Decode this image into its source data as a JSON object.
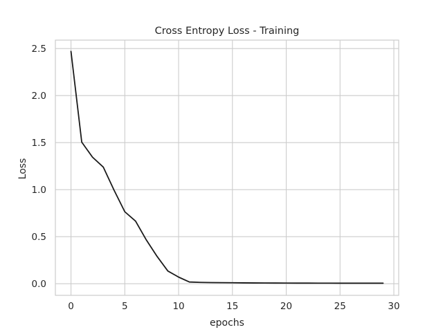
{
  "chart_data": {
    "type": "line",
    "title": "Cross Entropy Loss - Training",
    "xlabel": "epochs",
    "ylabel": "Loss",
    "xlim": [
      -1.45,
      30.45
    ],
    "ylim": [
      -0.124,
      2.59
    ],
    "xticks": [
      0,
      5,
      10,
      15,
      20,
      25,
      30
    ],
    "yticks": [
      0.0,
      0.5,
      1.0,
      1.5,
      2.0,
      2.5
    ],
    "xtick_labels": [
      "0",
      "5",
      "10",
      "15",
      "20",
      "25",
      "30"
    ],
    "ytick_labels": [
      "0.0",
      "0.5",
      "1.0",
      "1.5",
      "2.0",
      "2.5"
    ],
    "grid": true,
    "legend": false,
    "colors": {
      "line": "#1a1a1a",
      "grid": "#cccccc",
      "background": "#ffffff"
    },
    "series": [
      {
        "x": [
          0,
          1,
          2,
          3,
          4,
          5,
          6,
          7,
          8,
          9,
          10,
          11,
          12,
          13,
          14,
          15,
          16,
          17,
          18,
          19,
          20,
          21,
          22,
          23,
          24,
          25,
          26,
          27,
          28,
          29
        ],
        "values": [
          2.47,
          1.505,
          1.345,
          1.24,
          0.995,
          0.765,
          0.665,
          0.465,
          0.29,
          0.135,
          0.07,
          0.018,
          0.014,
          0.012,
          0.011,
          0.01,
          0.009,
          0.008,
          0.0075,
          0.007,
          0.0065,
          0.006,
          0.006,
          0.0055,
          0.0055,
          0.005,
          0.005,
          0.005,
          0.005,
          0.005
        ]
      }
    ]
  }
}
